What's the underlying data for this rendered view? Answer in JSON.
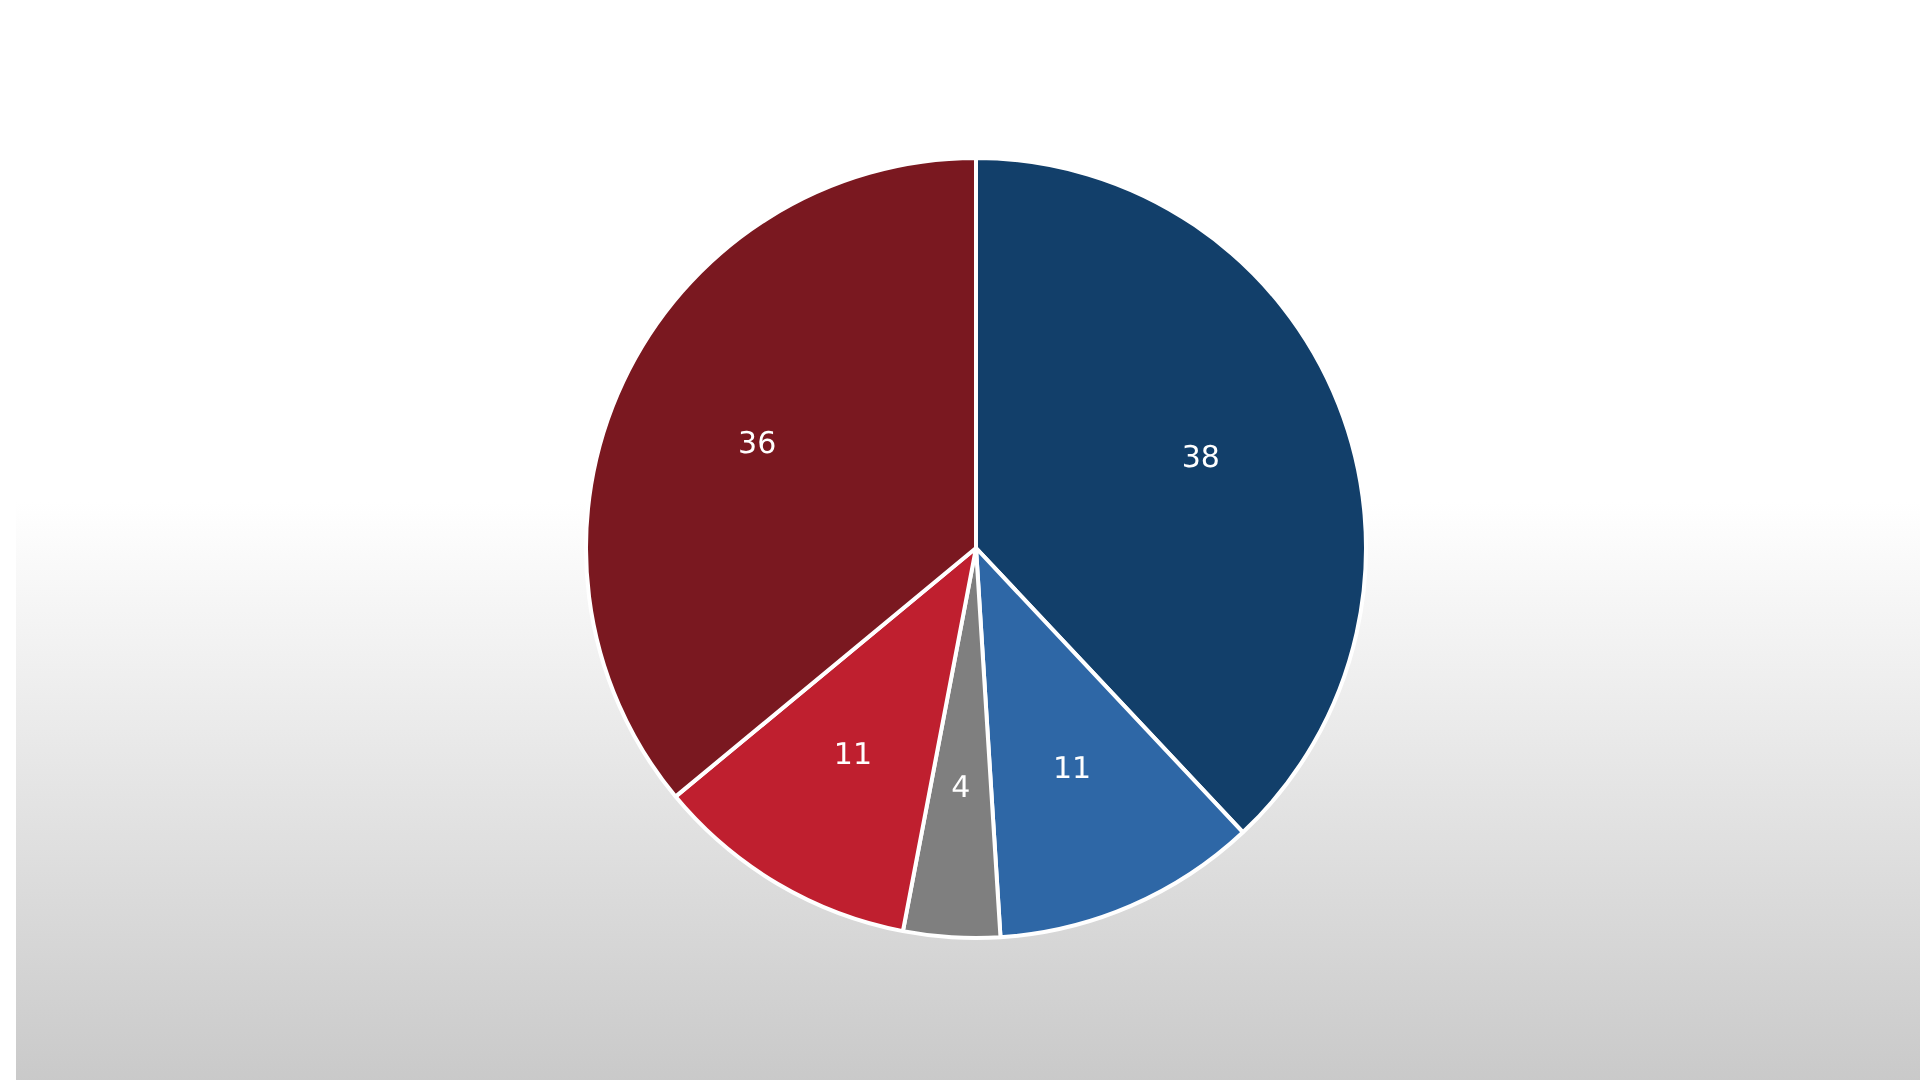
{
  "chart_data": {
    "type": "pie",
    "categories": [
      null,
      null,
      null,
      null,
      null
    ],
    "values": [
      38,
      11,
      4,
      11,
      36
    ],
    "colors": [
      "#123f6a",
      "#2e67a6",
      "#7f7f7f",
      "#bf1f2f",
      "#7a1820"
    ],
    "data_labels": true,
    "legend": false
  }
}
